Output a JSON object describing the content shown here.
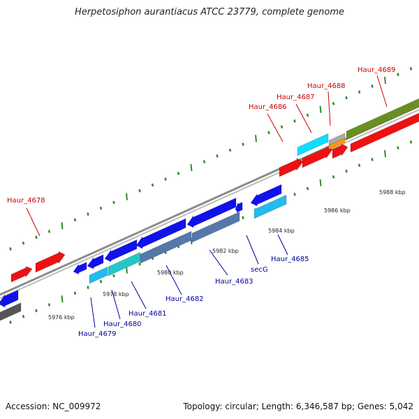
{
  "title": "Herpetosiphon aurantiacus ATCC 23779, complete genome",
  "footer": {
    "accession": "Accession: NC_009972",
    "summary": "Topology: circular; Length: 6,346,587 bp; Genes: 5,042"
  },
  "scale_labels": [
    "5976 kbp",
    "5978 kbp",
    "5980 kbp",
    "5982 kbp",
    "5984 kbp",
    "5986 kbp",
    "5988 kbp"
  ],
  "colors": {
    "backbone": "#8c8c8c",
    "tick": "#2e8b2e",
    "label_top": "#cc0000",
    "label_bottom": "#000099",
    "red": "#ee1111",
    "blue": "#1111ee",
    "cyan": "#11ddff",
    "sky": "#22bbee",
    "teal": "#22c8c8",
    "steel": "#5577aa",
    "olive": "#6b8e23",
    "orange": "#ff9900",
    "grey": "#aaaaaa",
    "dark": "#555555"
  },
  "gene_labels_top": [
    "Haur_4678",
    "Haur_4686",
    "Haur_4687",
    "Haur_4688",
    "Haur_4689"
  ],
  "gene_labels_bottom": [
    "Haur_4679",
    "Haur_4680",
    "Haur_4681",
    "Haur_4682",
    "Haur_4683",
    "secG",
    "Haur_4685"
  ]
}
